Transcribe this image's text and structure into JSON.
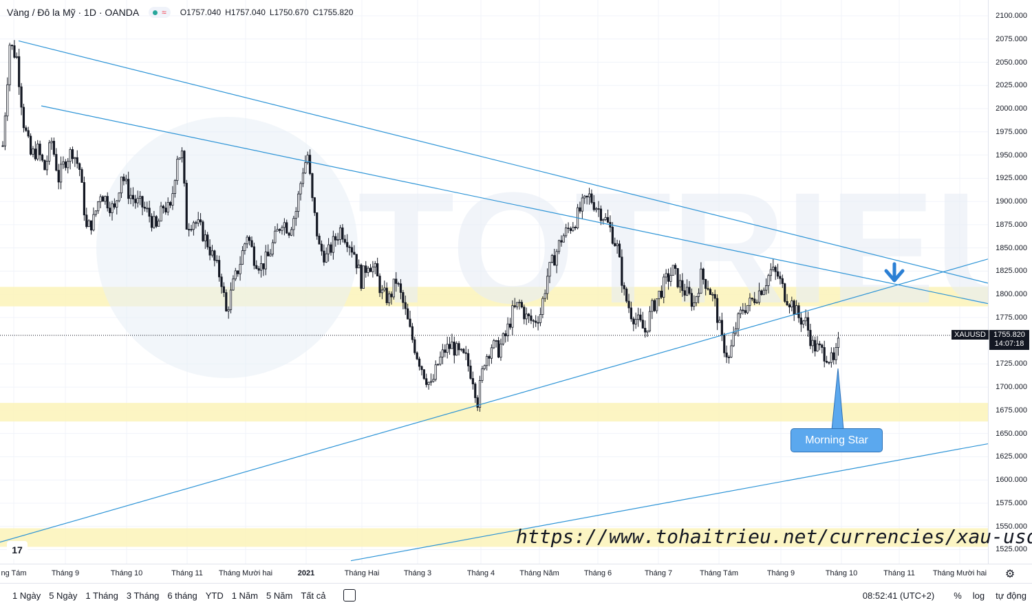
{
  "header": {
    "symbol_title": "Vàng / Đô la Mỹ · 1D · OANDA",
    "status_wave": "≈",
    "ohlc": [
      {
        "k": "O",
        "v": "1757.040"
      },
      {
        "k": "H",
        "v": "1757.040"
      },
      {
        "k": "L",
        "v": "1750.670"
      },
      {
        "k": "C",
        "v": "1755.820"
      }
    ]
  },
  "price_axis": {
    "labels": [
      "2100.000",
      "2075.000",
      "2050.000",
      "2025.000",
      "2000.000",
      "1975.000",
      "1950.000",
      "1925.000",
      "1900.000",
      "1875.000",
      "1850.000",
      "1825.000",
      "1800.000",
      "1775.000",
      "1725.000",
      "1700.000",
      "1675.000",
      "1650.000",
      "1625.000",
      "1600.000",
      "1575.000",
      "1550.000",
      "1525.000"
    ],
    "values": [
      2100,
      2075,
      2050,
      2025,
      2000,
      1975,
      1950,
      1925,
      1900,
      1875,
      1850,
      1825,
      1800,
      1775,
      1725,
      1700,
      1675,
      1650,
      1625,
      1600,
      1575,
      1550,
      1525
    ]
  },
  "time_axis": {
    "labels": [
      "ng Tám",
      "Tháng 9",
      "Tháng 10",
      "Tháng 11",
      "Tháng Mười hai",
      "2021",
      "Tháng Hai",
      "Tháng 3",
      "Tháng 4",
      "Tháng Năm",
      "Tháng 6",
      "Tháng 7",
      "Tháng Tám",
      "Tháng 9",
      "Tháng 10",
      "Tháng 11",
      "Tháng Mười hai"
    ],
    "bold_index": 5
  },
  "symbol_tag": "XAUUSD",
  "last_price": {
    "price": "1755.820",
    "countdown": "14:07:18"
  },
  "callout": "Morning Star",
  "watermark_url": "https://www.tohaitrieu.net/currencies/xau-usd/",
  "tv_logo": "17",
  "bottom_bar": {
    "ranges": [
      "1 Ngày",
      "5 Ngày",
      "1 Tháng",
      "3 Tháng",
      "6 tháng",
      "YTD",
      "1 Năm",
      "5 Năm",
      "Tất cả"
    ],
    "clock": "08:52:41 (UTC+2)",
    "percent": "%",
    "log": "log",
    "auto": "tự động"
  },
  "colors": {
    "up": "#131722",
    "down": "#131722",
    "trend": "#2b93d6",
    "zone": "#fbf3b8",
    "arrow": "#2b7fd4"
  },
  "chart_data": {
    "type": "candlestick",
    "symbol": "XAUUSD",
    "interval": "1D",
    "ylim": [
      1515,
      2110
    ],
    "last_price": 1755.82,
    "support_zones": [
      [
        1787,
        1808
      ],
      [
        1663,
        1683
      ],
      [
        1528,
        1548
      ]
    ],
    "trendlines": [
      {
        "from": [
          "2020-08-06",
          2073
        ],
        "to": [
          "2021-10-26",
          1812
        ]
      },
      {
        "from": [
          "2020-08-11",
          2003
        ],
        "to": [
          "2021-10-26",
          1790
        ]
      },
      {
        "from": [
          "2020-07-27",
          1533
        ],
        "to": [
          "2021-10-26",
          1838
        ]
      },
      {
        "from": [
          "2021-01-26",
          1513
        ],
        "to": [
          "2021-10-26",
          1639
        ]
      }
    ],
    "path": [
      [
        0,
        1960
      ],
      [
        3,
        2070
      ],
      [
        6,
        2055
      ],
      [
        9,
        1985
      ],
      [
        12,
        1950
      ],
      [
        15,
        1955
      ],
      [
        18,
        1935
      ],
      [
        21,
        1965
      ],
      [
        24,
        1925
      ],
      [
        27,
        1945
      ],
      [
        30,
        1955
      ],
      [
        33,
        1935
      ],
      [
        36,
        1870
      ],
      [
        39,
        1880
      ],
      [
        42,
        1910
      ],
      [
        45,
        1900
      ],
      [
        48,
        1890
      ],
      [
        51,
        1930
      ],
      [
        54,
        1910
      ],
      [
        57,
        1900
      ],
      [
        60,
        1895
      ],
      [
        63,
        1885
      ],
      [
        66,
        1870
      ],
      [
        69,
        1895
      ],
      [
        72,
        1890
      ],
      [
        75,
        1950
      ],
      [
        77,
        1950
      ],
      [
        79,
        1875
      ],
      [
        82,
        1880
      ],
      [
        85,
        1870
      ],
      [
        88,
        1855
      ],
      [
        91,
        1835
      ],
      [
        94,
        1815
      ],
      [
        96,
        1780
      ],
      [
        99,
        1810
      ],
      [
        102,
        1835
      ],
      [
        105,
        1865
      ],
      [
        108,
        1840
      ],
      [
        111,
        1830
      ],
      [
        114,
        1840
      ],
      [
        117,
        1860
      ],
      [
        120,
        1880
      ],
      [
        123,
        1870
      ],
      [
        126,
        1890
      ],
      [
        129,
        1935
      ],
      [
        131,
        1950
      ],
      [
        133,
        1900
      ],
      [
        136,
        1850
      ],
      [
        139,
        1840
      ],
      [
        142,
        1855
      ],
      [
        145,
        1870
      ],
      [
        148,
        1860
      ],
      [
        151,
        1845
      ],
      [
        154,
        1815
      ],
      [
        157,
        1835
      ],
      [
        160,
        1825
      ],
      [
        163,
        1800
      ],
      [
        166,
        1795
      ],
      [
        169,
        1815
      ],
      [
        172,
        1790
      ],
      [
        175,
        1760
      ],
      [
        178,
        1735
      ],
      [
        181,
        1715
      ],
      [
        184,
        1700
      ],
      [
        187,
        1725
      ],
      [
        190,
        1740
      ],
      [
        193,
        1745
      ],
      [
        196,
        1735
      ],
      [
        199,
        1730
      ],
      [
        202,
        1710
      ],
      [
        204,
        1685
      ],
      [
        207,
        1730
      ],
      [
        210,
        1745
      ],
      [
        213,
        1740
      ],
      [
        216,
        1755
      ],
      [
        219,
        1780
      ],
      [
        222,
        1790
      ],
      [
        225,
        1775
      ],
      [
        228,
        1770
      ],
      [
        231,
        1780
      ],
      [
        234,
        1820
      ],
      [
        237,
        1840
      ],
      [
        240,
        1860
      ],
      [
        243,
        1870
      ],
      [
        246,
        1880
      ],
      [
        249,
        1895
      ],
      [
        252,
        1905
      ],
      [
        255,
        1895
      ],
      [
        258,
        1885
      ],
      [
        261,
        1870
      ],
      [
        264,
        1850
      ],
      [
        267,
        1800
      ],
      [
        270,
        1780
      ],
      [
        273,
        1770
      ],
      [
        276,
        1760
      ],
      [
        279,
        1785
      ],
      [
        282,
        1800
      ],
      [
        285,
        1815
      ],
      [
        288,
        1825
      ],
      [
        291,
        1810
      ],
      [
        294,
        1800
      ],
      [
        297,
        1790
      ],
      [
        300,
        1820
      ],
      [
        303,
        1810
      ],
      [
        306,
        1790
      ],
      [
        309,
        1750
      ],
      [
        312,
        1730
      ],
      [
        315,
        1765
      ],
      [
        318,
        1785
      ],
      [
        321,
        1790
      ],
      [
        324,
        1800
      ],
      [
        327,
        1810
      ],
      [
        330,
        1825
      ],
      [
        333,
        1820
      ],
      [
        336,
        1800
      ],
      [
        339,
        1790
      ],
      [
        342,
        1775
      ],
      [
        345,
        1770
      ],
      [
        348,
        1745
      ],
      [
        351,
        1740
      ],
      [
        354,
        1735
      ],
      [
        357,
        1725
      ],
      [
        360,
        1755
      ]
    ]
  }
}
